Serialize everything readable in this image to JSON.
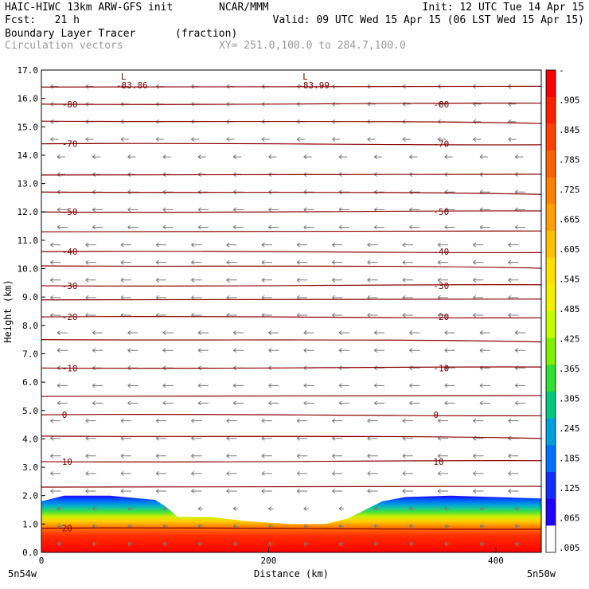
{
  "header": {
    "title_left": "HAIC-HIWC 13km ARW-GFS init",
    "title_org": "NCAR/MMM",
    "init": "Init: 12 UTC Tue 14 Apr 15",
    "fcst": "Fcst:   21 h",
    "valid": "Valid: 09 UTC Wed 15 Apr 15 (06 LST Wed 15 Apr 15)",
    "field": "Boundary Layer Tracer",
    "field_units": "(fraction)",
    "vectors": "Circulation vectors",
    "xy": "XY= 251.0,100.0 to 284.7,100.0"
  },
  "chart_data": {
    "type": "heatmap",
    "title": "Boundary Layer Tracer",
    "units": "(fraction)",
    "xlabel": "Distance (km)",
    "ylabel": "Height (km)",
    "xlim": [
      0,
      440
    ],
    "ylim": [
      0,
      17
    ],
    "x_ticks": [
      "0",
      "200",
      "400"
    ],
    "x_tick_values": [
      0,
      200,
      400
    ],
    "x_end_labels": {
      "left": "5n54w",
      "right": "5n50w"
    },
    "y_ticks": [
      "0.0",
      "1.0",
      "2.0",
      "3.0",
      "4.0",
      "5.0",
      "6.0",
      "7.0",
      "8.0",
      "9.0",
      "10.0",
      "11.0",
      "12.0",
      "13.0",
      "14.0",
      "15.0",
      "16.0",
      "17.0"
    ],
    "colorbar_labels": [
      "-",
      ".905",
      ".845",
      ".785",
      ".725",
      ".665",
      ".605",
      ".545",
      ".485",
      ".425",
      ".365",
      ".305",
      ".245",
      ".185",
      ".125",
      ".065",
      ".005"
    ],
    "colorbar_colors": [
      "#ff0000",
      "#ff1e00",
      "#ff4000",
      "#ff6000",
      "#ff8000",
      "#ffa000",
      "#ffc000",
      "#ffe000",
      "#f0f000",
      "#c0ff00",
      "#80f000",
      "#30e030",
      "#00c880",
      "#00a0e0",
      "#0070ff",
      "#1030ff",
      "#2000ff",
      "#ffffff"
    ],
    "bl_top_profile": {
      "x": [
        0,
        20,
        60,
        100,
        110,
        120,
        150,
        180,
        200,
        220,
        250,
        270,
        290,
        300,
        320,
        360,
        400,
        440
      ],
      "top": [
        1.8,
        2.0,
        2.0,
        1.85,
        1.6,
        1.25,
        1.25,
        1.1,
        1.05,
        1.0,
        1.0,
        1.2,
        1.6,
        1.8,
        1.95,
        2.0,
        1.95,
        1.9
      ]
    },
    "isotherms": [
      {
        "label": "-80",
        "y": 15.8
      },
      {
        "label": "-70",
        "y": 14.4
      },
      {
        "label": "-50",
        "y": 12.0
      },
      {
        "label": "-40",
        "y": 10.6
      },
      {
        "label": "-30",
        "y": 9.4
      },
      {
        "label": "-20",
        "y": 8.3
      },
      {
        "label": "-10",
        "y": 6.5
      },
      {
        "label": "0",
        "y": 4.85
      },
      {
        "label": "10",
        "y": 3.2
      },
      {
        "label": "20",
        "y": 0.85
      }
    ],
    "minima": [
      {
        "x": 70,
        "label": "L",
        "value": "-83.86"
      },
      {
        "x": 230,
        "label": "L",
        "value": "-83.99"
      }
    ]
  }
}
